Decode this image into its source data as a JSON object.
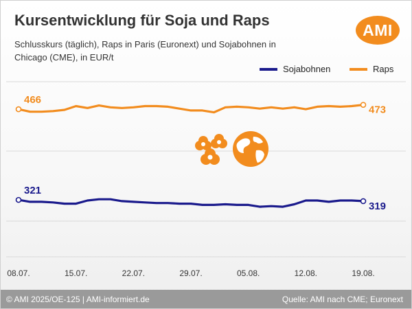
{
  "header": {
    "title": "Kursentwicklung für Soja und Raps",
    "subtitle": "Schlusskurs (täglich), Raps in Paris (Euronext) und Sojabohnen in Chicago (CME), in EUR/t",
    "logo_text": "AMI"
  },
  "footer": {
    "copyright": "© AMI 2025/OE-125 | AMI-informiert.de",
    "source": "Quelle: AMI nach CME; Euronext"
  },
  "colors": {
    "soja": "#1a1a8c",
    "raps": "#f28c1e",
    "logo": "#f28c1e",
    "grid": "#d9d9d9"
  },
  "icons": [
    "flower-cluster-icon",
    "globe-icon"
  ],
  "chart_data": {
    "type": "line",
    "x_ticks": [
      "08.07.",
      "15.07.",
      "22.07.",
      "29.07.",
      "05.08.",
      "12.08.",
      "19.08."
    ],
    "x_dates": [
      "08.07.",
      "09.07.",
      "10.07.",
      "11.07.",
      "14.07.",
      "15.07.",
      "16.07.",
      "17.07.",
      "18.07.",
      "21.07.",
      "22.07.",
      "23.07.",
      "24.07.",
      "25.07.",
      "28.07.",
      "29.07.",
      "30.07.",
      "31.07.",
      "01.08.",
      "04.08.",
      "05.08.",
      "06.08.",
      "07.08.",
      "08.08.",
      "11.08.",
      "12.08.",
      "13.08.",
      "14.08.",
      "15.08.",
      "18.08.",
      "19.08."
    ],
    "ylim": [
      230,
      510
    ],
    "grid": true,
    "legend_position": "top-right",
    "series": [
      {
        "name": "Sojabohnen",
        "color_key": "soja",
        "values": [
          321,
          318,
          318,
          317,
          315,
          315,
          320,
          322,
          322,
          319,
          318,
          317,
          316,
          316,
          315,
          315,
          313,
          313,
          314,
          313,
          313,
          310,
          311,
          310,
          314,
          320,
          320,
          318,
          320,
          320,
          319
        ],
        "start_label": "321",
        "end_label": "319"
      },
      {
        "name": "Raps",
        "color_key": "raps",
        "values": [
          466,
          462,
          462,
          463,
          465,
          471,
          468,
          472,
          469,
          468,
          469,
          471,
          471,
          470,
          467,
          464,
          464,
          461,
          469,
          470,
          469,
          467,
          469,
          467,
          469,
          466,
          470,
          471,
          470,
          471,
          473
        ],
        "start_label": "466",
        "end_label": "473"
      }
    ]
  }
}
